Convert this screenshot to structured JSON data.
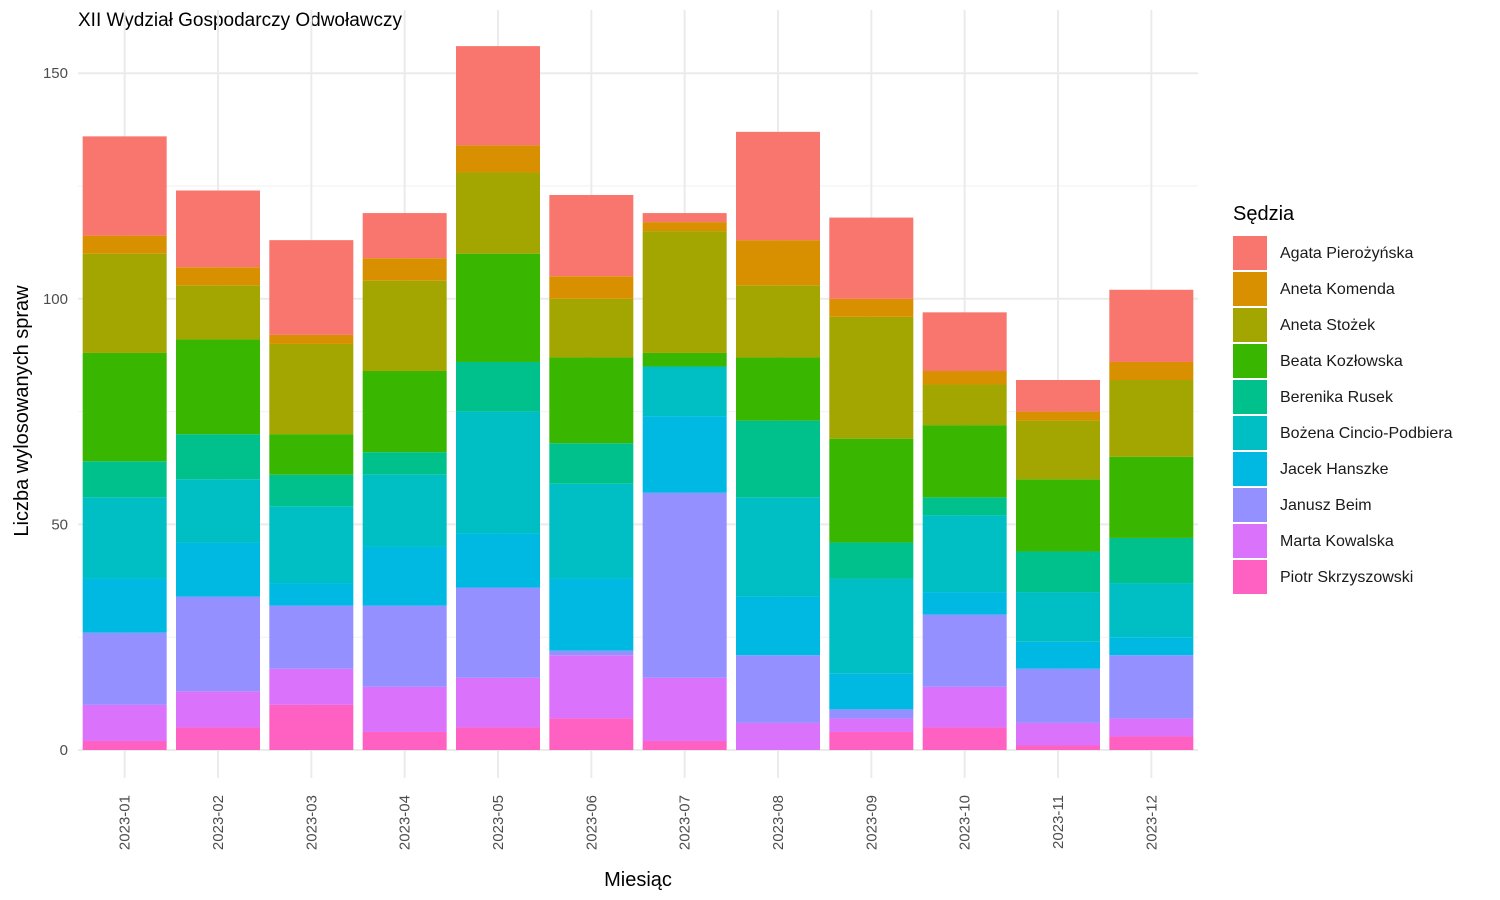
{
  "chart_data": {
    "type": "bar",
    "stacked": true,
    "title": "XII Wydział Gospodarczy Odwoławczy",
    "xlabel": "Miesiąc",
    "ylabel": "Liczba wylosowanych spraw",
    "ylim": [
      -6,
      160
    ],
    "yticks": [
      0,
      50,
      100,
      150
    ],
    "grid": true,
    "legend_title": "Sędzia",
    "legend_position": "right",
    "categories": [
      "2023-01",
      "2023-02",
      "2023-03",
      "2023-04",
      "2023-05",
      "2023-06",
      "2023-07",
      "2023-08",
      "2023-09",
      "2023-10",
      "2023-11",
      "2023-12"
    ],
    "series": [
      {
        "name": "Piotr Skrzyszowski",
        "color": "#FF61C3",
        "values": [
          2,
          5,
          10,
          4,
          5,
          7,
          2,
          0,
          4,
          5,
          1,
          3
        ]
      },
      {
        "name": "Marta Kowalska",
        "color": "#DB72FB",
        "values": [
          8,
          8,
          8,
          10,
          11,
          14,
          14,
          6,
          3,
          9,
          5,
          4
        ]
      },
      {
        "name": "Janusz Beim",
        "color": "#9590FF",
        "values": [
          16,
          21,
          14,
          18,
          20,
          1,
          41,
          15,
          2,
          16,
          12,
          14
        ]
      },
      {
        "name": "Jacek Hanszke",
        "color": "#00B9E3",
        "values": [
          12,
          12,
          5,
          13,
          12,
          16,
          17,
          13,
          8,
          5,
          6,
          4
        ]
      },
      {
        "name": "Bożena Cincio-Podbiera",
        "color": "#00BFC4",
        "values": [
          18,
          14,
          17,
          16,
          27,
          21,
          11,
          22,
          21,
          17,
          11,
          12
        ]
      },
      {
        "name": "Berenika Rusek",
        "color": "#00C08B",
        "values": [
          8,
          10,
          7,
          5,
          11,
          9,
          0,
          17,
          8,
          4,
          9,
          10
        ]
      },
      {
        "name": "Beata Kozłowska",
        "color": "#39B600",
        "values": [
          24,
          21,
          9,
          18,
          24,
          19,
          3,
          14,
          23,
          16,
          16,
          18
        ]
      },
      {
        "name": "Aneta Stożek",
        "color": "#A3A500",
        "values": [
          22,
          12,
          20,
          20,
          18,
          13,
          27,
          16,
          27,
          9,
          13,
          17
        ]
      },
      {
        "name": "Aneta Komenda",
        "color": "#D89000",
        "values": [
          4,
          4,
          2,
          5,
          6,
          5,
          2,
          10,
          4,
          3,
          2,
          4
        ]
      },
      {
        "name": "Agata Pierożyńska",
        "color": "#F8766D",
        "values": [
          22,
          17,
          21,
          10,
          22,
          18,
          2,
          24,
          18,
          13,
          7,
          16
        ]
      }
    ]
  }
}
